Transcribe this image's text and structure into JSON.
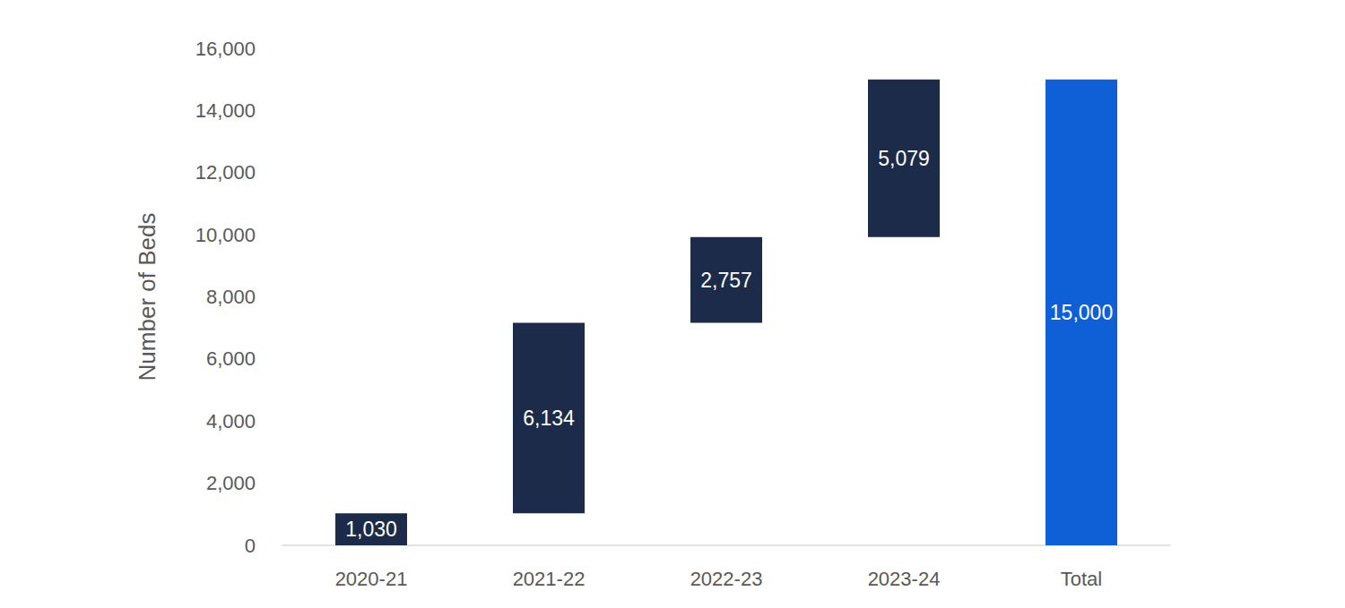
{
  "chart_data": {
    "type": "waterfall",
    "y_label": "Number of Beds",
    "categories": [
      "2020-21",
      "2021-22",
      "2022-23",
      "2023-24",
      "Total"
    ],
    "values": [
      1030,
      6134,
      2757,
      5079,
      15000
    ],
    "value_labels": [
      "1,030",
      "6,134",
      "2,757",
      "5,079",
      "15,000"
    ],
    "colors": [
      "#1d2b4a",
      "#1d2b4a",
      "#1d2b4a",
      "#1d2b4a",
      "#0f5fd6"
    ],
    "ylim": [
      0,
      16000
    ],
    "yticks": [
      0,
      {
        "value": 2000,
        "label": "2,000"
      },
      {
        "value": 4000,
        "label": "4,000"
      },
      {
        "value": 6000,
        "label": "6,000"
      },
      {
        "value": 8000,
        "label": "8,000"
      },
      {
        "value": 10000,
        "label": "10,000"
      },
      {
        "value": 12000,
        "label": "12,000"
      },
      {
        "value": 14000,
        "label": "14,000"
      },
      {
        "value": 16000,
        "label": "16,000"
      }
    ],
    "grid": false,
    "data_labels": true
  }
}
